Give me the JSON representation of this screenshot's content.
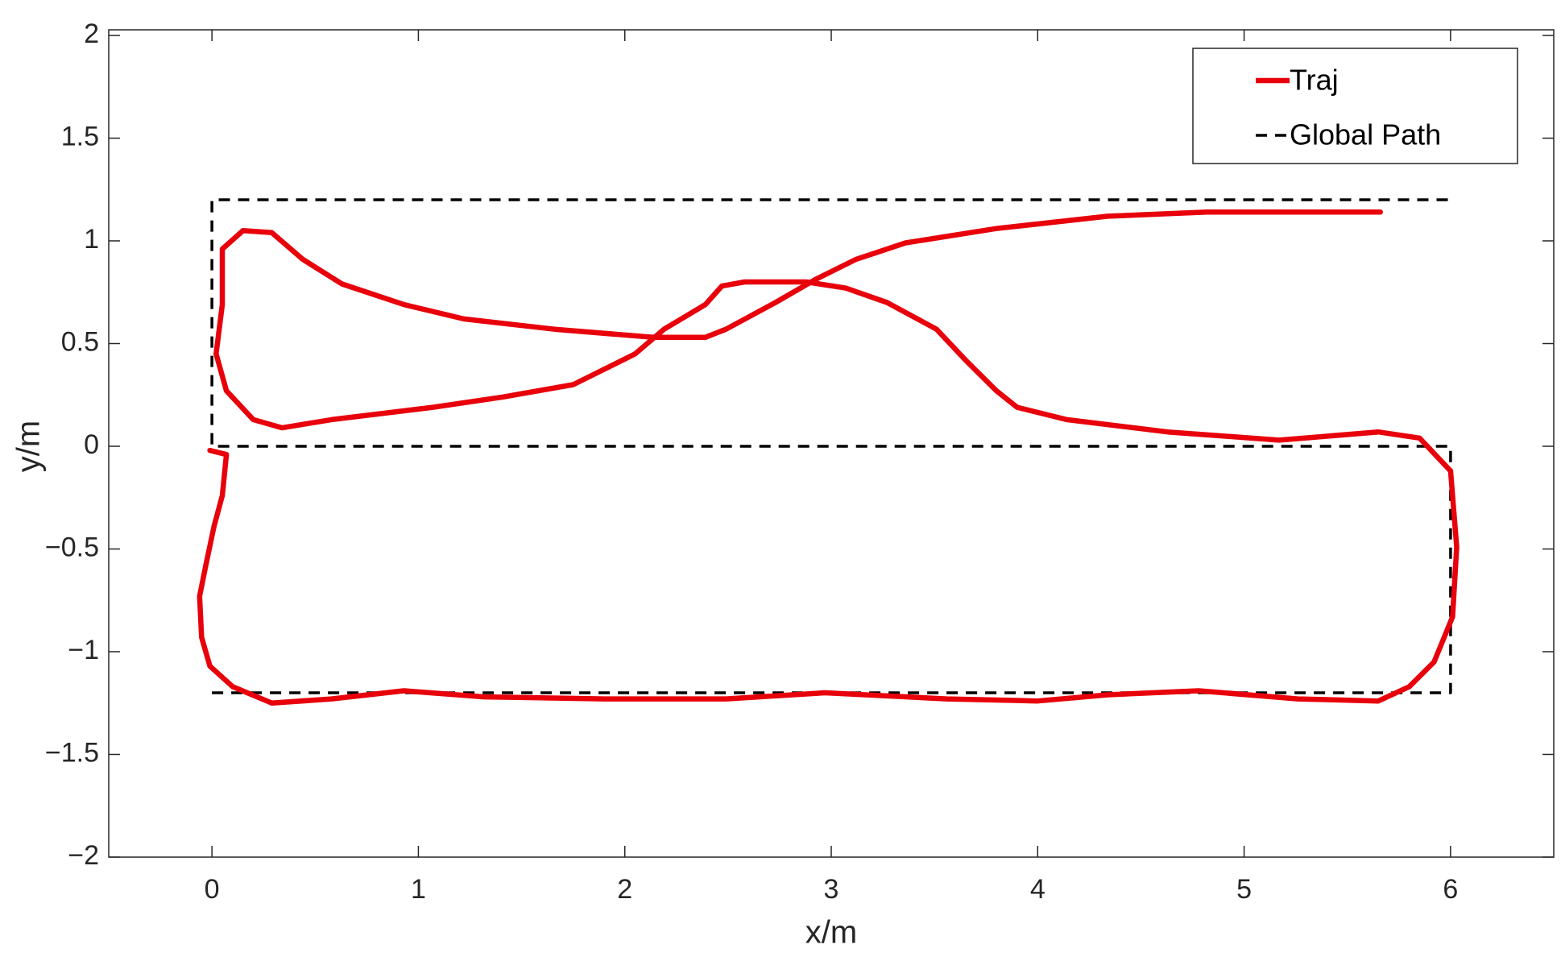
{
  "chart_data": {
    "type": "line",
    "xlabel": "x/m",
    "ylabel": "y/m",
    "xlim": [
      -0.5,
      6.5
    ],
    "xticks": [
      0,
      1,
      2,
      3,
      4,
      5,
      6
    ],
    "ylim": [
      -2,
      2
    ],
    "yticks": [
      {
        "value": -2,
        "label": "−2"
      },
      {
        "value": -1.5,
        "label": "−1.5"
      },
      {
        "value": -1,
        "label": "−1"
      },
      {
        "value": -0.5,
        "label": "−0.5"
      },
      0,
      0.5,
      1,
      1.5,
      2
    ],
    "legend": "upper right",
    "series": [
      {
        "name": "Traj",
        "color": "#e8000b",
        "dash": "solid",
        "x": [
          -0.01,
          0.07,
          0.05,
          0.01,
          -0.03,
          -0.06,
          -0.05,
          -0.01,
          0.1,
          0.29,
          0.58,
          0.93,
          1.32,
          1.9,
          2.49,
          2.97,
          3.56,
          4.0,
          4.34,
          4.78,
          5.26,
          5.65,
          5.8,
          5.92,
          6.01,
          6.03,
          6.0,
          5.85,
          5.65,
          5.17,
          4.63,
          4.14,
          3.9,
          3.8,
          3.65,
          3.51,
          3.27,
          3.07,
          2.88,
          2.58,
          2.47,
          2.39,
          2.19,
          2.05,
          1.75,
          1.41,
          1.07,
          0.58,
          0.34,
          0.2,
          0.07,
          0.02,
          0.05,
          0.05,
          0.15,
          0.29,
          0.44,
          0.63,
          0.93,
          1.22,
          1.66,
          2.14,
          2.39,
          2.49,
          2.73,
          2.92,
          3.12,
          3.36,
          3.8,
          4.34,
          4.82,
          5.31,
          5.66
        ],
        "values": [
          -0.02,
          -0.04,
          -0.24,
          -0.39,
          -0.58,
          -0.73,
          -0.93,
          -1.07,
          -1.17,
          -1.25,
          -1.23,
          -1.19,
          -1.22,
          -1.23,
          -1.23,
          -1.2,
          -1.23,
          -1.24,
          -1.21,
          -1.19,
          -1.23,
          -1.24,
          -1.17,
          -1.05,
          -0.83,
          -0.49,
          -0.12,
          0.04,
          0.07,
          0.03,
          0.07,
          0.13,
          0.19,
          0.27,
          0.42,
          0.57,
          0.7,
          0.77,
          0.8,
          0.8,
          0.78,
          0.69,
          0.57,
          0.45,
          0.3,
          0.24,
          0.19,
          0.13,
          0.09,
          0.13,
          0.27,
          0.45,
          0.69,
          0.96,
          1.05,
          1.04,
          0.91,
          0.79,
          0.69,
          0.62,
          0.57,
          0.53,
          0.53,
          0.57,
          0.7,
          0.81,
          0.91,
          0.99,
          1.06,
          1.12,
          1.14,
          1.14,
          1.14
        ]
      },
      {
        "name": "Global Path",
        "color": "#000000",
        "dash": "dashed",
        "x": [
          0,
          6,
          6,
          0,
          0,
          6
        ],
        "values": [
          -1.2,
          -1.2,
          0,
          0,
          1.2,
          1.2
        ]
      }
    ]
  }
}
